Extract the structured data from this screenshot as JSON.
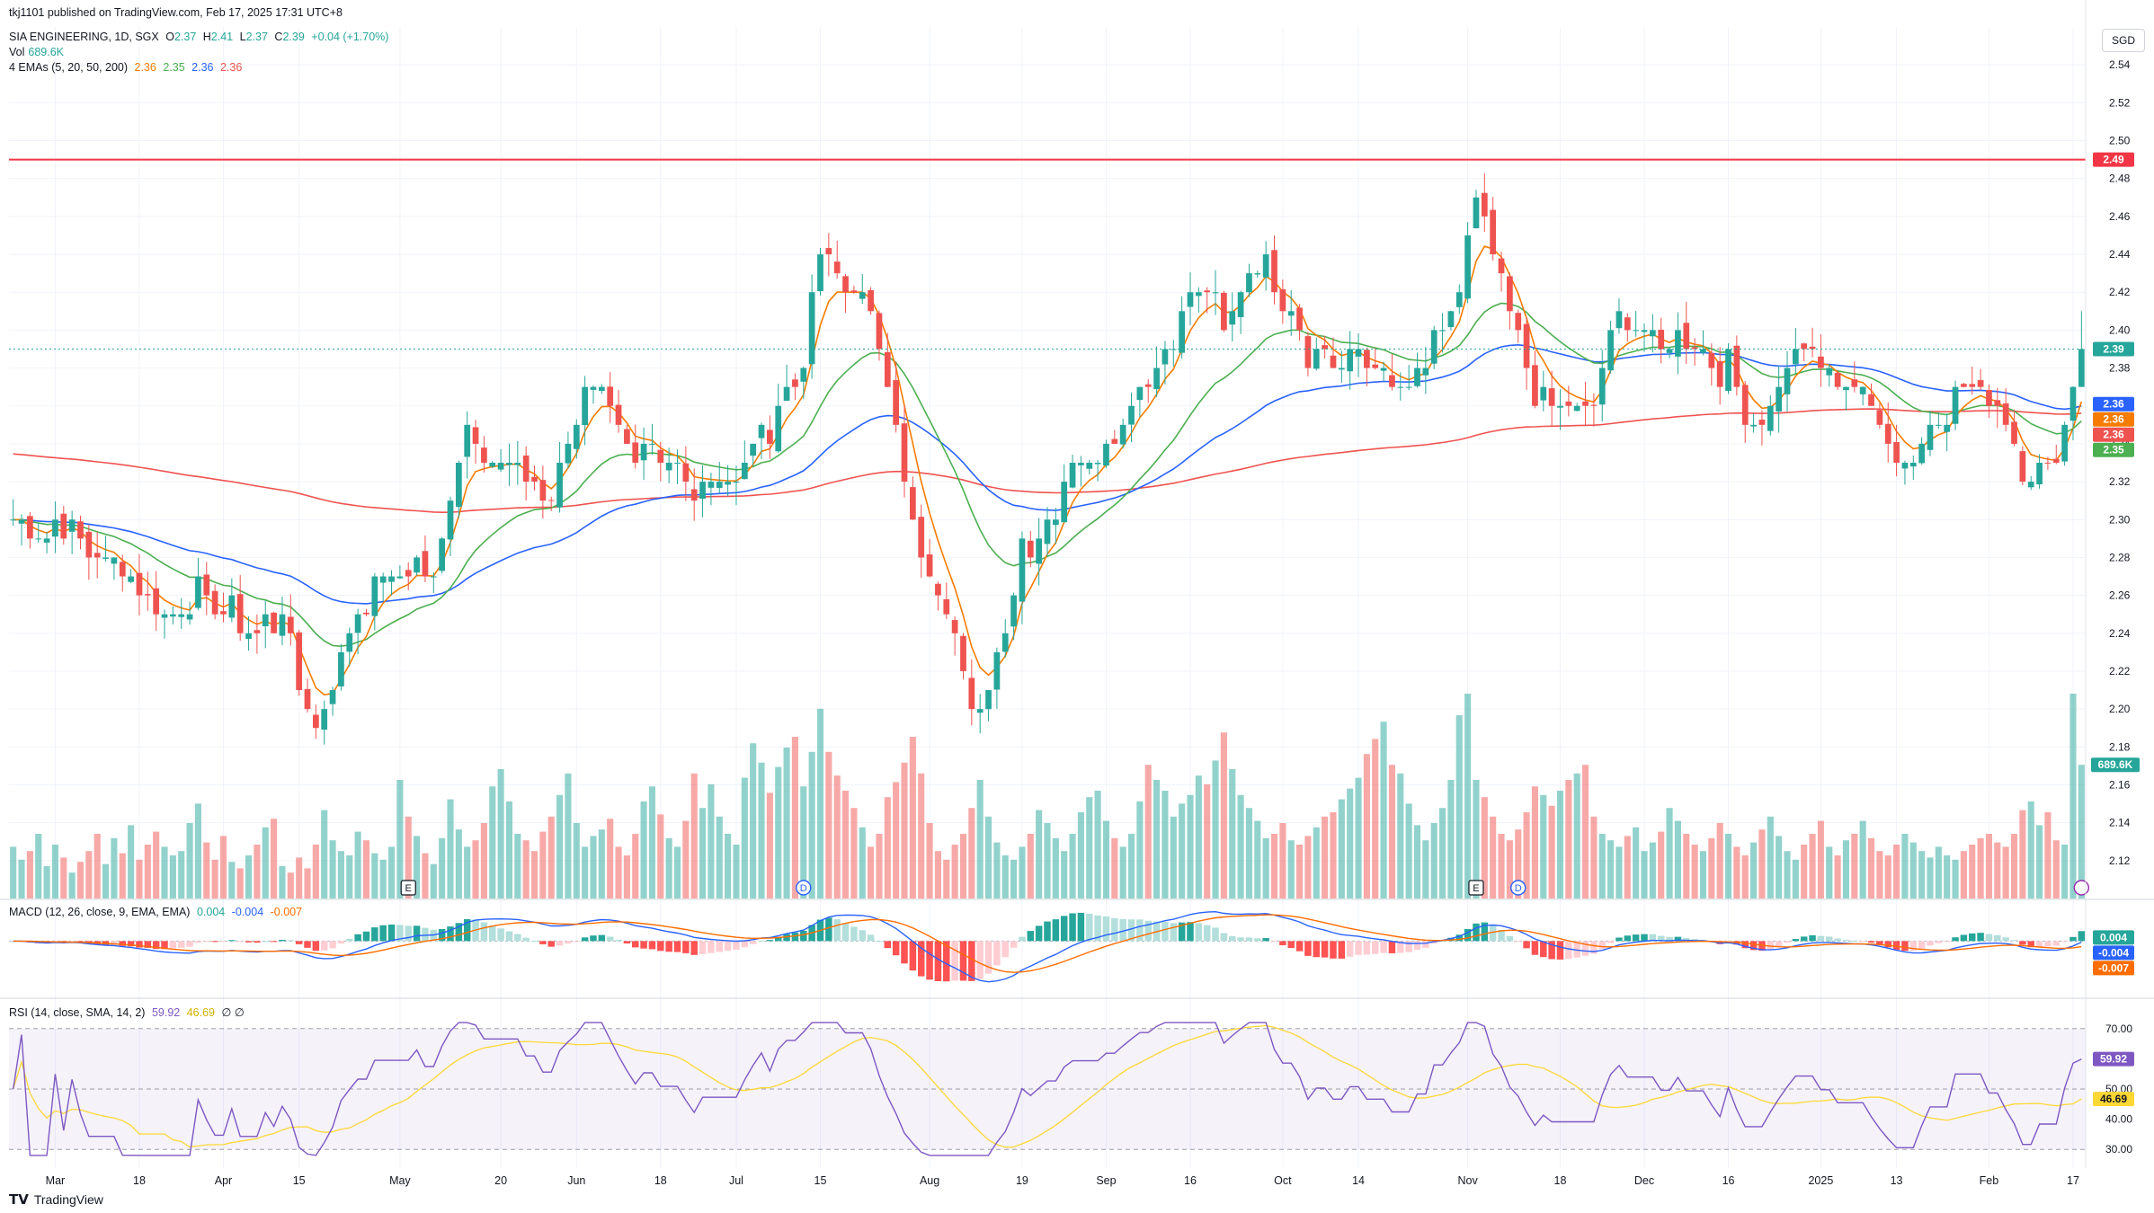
{
  "header": {
    "publisher": "tkj1101 published on TradingView.com, Feb 17, 2025 17:31 UTC+8"
  },
  "legend": {
    "symbol": "SIA ENGINEERING, 1D, SGX",
    "o_label": "O",
    "o": "2.37",
    "h_label": "H",
    "h": "2.41",
    "l_label": "L",
    "l": "2.37",
    "c_label": "C",
    "c": "2.39",
    "change": "+0.04 (+1.70%)",
    "vol_label": "Vol",
    "vol": "689.6K",
    "ema_label": "4 EMAs (5, 20, 50, 200)",
    "ema5": "2.36",
    "ema20": "2.35",
    "ema50": "2.36",
    "ema200": "2.36",
    "macd_label": "MACD (12, 26, close, 9, EMA, EMA)",
    "macd_hist": "0.004",
    "macd_line": "-0.004",
    "macd_signal": "-0.007",
    "rsi_label": "RSI (14, close, SMA, 14, 2)",
    "rsi": "59.92",
    "rsi_ma": "46.69",
    "rsi_extra": "∅ ∅"
  },
  "currency": "SGD",
  "footer_logo": "TradingView",
  "colors": {
    "up": "#26a69a",
    "down": "#ef5350",
    "ema5": "#f57c00",
    "ema20": "#4caf50",
    "ema50": "#2962ff",
    "ema200": "#ef5350",
    "macd": "#2962ff",
    "signal": "#ff6d00",
    "rsi": "#7e57c2",
    "rsi_ma": "#fdd835",
    "resistance": "#f23645"
  },
  "chart_data": [
    {
      "type": "candlestick",
      "title": "SIA ENGINEERING, 1D, SGX",
      "ylim": [
        2.1,
        2.56
      ],
      "y_ticks": [
        "2.54",
        "2.52",
        "2.50",
        "2.48",
        "2.46",
        "2.44",
        "2.42",
        "2.40",
        "2.38",
        "2.36",
        "2.34",
        "2.32",
        "2.30",
        "2.28",
        "2.26",
        "2.24",
        "2.22",
        "2.20",
        "2.18",
        "2.16",
        "2.14",
        "2.12"
      ],
      "x_labels": [
        {
          "label": "Mar",
          "i": 5
        },
        {
          "label": "18",
          "i": 15
        },
        {
          "label": "Apr",
          "i": 25
        },
        {
          "label": "15",
          "i": 34
        },
        {
          "label": "May",
          "i": 46
        },
        {
          "label": "20",
          "i": 58
        },
        {
          "label": "Jun",
          "i": 67
        },
        {
          "label": "18",
          "i": 77
        },
        {
          "label": "Jul",
          "i": 86
        },
        {
          "label": "15",
          "i": 96
        },
        {
          "label": "Aug",
          "i": 109
        },
        {
          "label": "19",
          "i": 120
        },
        {
          "label": "Sep",
          "i": 130
        },
        {
          "label": "16",
          "i": 140
        },
        {
          "label": "Oct",
          "i": 151
        },
        {
          "label": "14",
          "i": 160
        },
        {
          "label": "Nov",
          "i": 173
        },
        {
          "label": "18",
          "i": 184
        },
        {
          "label": "Dec",
          "i": 194
        },
        {
          "label": "16",
          "i": 204
        },
        {
          "label": "2025",
          "i": 215
        },
        {
          "label": "13",
          "i": 224
        },
        {
          "label": "Feb",
          "i": 235
        },
        {
          "label": "17",
          "i": 245
        }
      ],
      "close_anchors": [
        [
          0,
          2.3
        ],
        [
          3,
          2.29
        ],
        [
          6,
          2.3
        ],
        [
          10,
          2.28
        ],
        [
          14,
          2.27
        ],
        [
          18,
          2.25
        ],
        [
          22,
          2.26
        ],
        [
          26,
          2.25
        ],
        [
          29,
          2.24
        ],
        [
          32,
          2.25
        ],
        [
          34,
          2.21
        ],
        [
          36,
          2.19
        ],
        [
          38,
          2.21
        ],
        [
          40,
          2.24
        ],
        [
          42,
          2.26
        ],
        [
          44,
          2.27
        ],
        [
          46,
          2.27
        ],
        [
          48,
          2.28
        ],
        [
          50,
          2.27
        ],
        [
          52,
          2.31
        ],
        [
          54,
          2.35
        ],
        [
          56,
          2.34
        ],
        [
          58,
          2.33
        ],
        [
          60,
          2.32
        ],
        [
          62,
          2.32
        ],
        [
          64,
          2.31
        ],
        [
          66,
          2.34
        ],
        [
          68,
          2.37
        ],
        [
          70,
          2.37
        ],
        [
          72,
          2.35
        ],
        [
          74,
          2.33
        ],
        [
          76,
          2.33
        ],
        [
          78,
          2.33
        ],
        [
          80,
          2.32
        ],
        [
          82,
          2.32
        ],
        [
          84,
          2.32
        ],
        [
          86,
          2.32
        ],
        [
          88,
          2.34
        ],
        [
          90,
          2.35
        ],
        [
          92,
          2.37
        ],
        [
          94,
          2.38
        ],
        [
          96,
          2.44
        ],
        [
          98,
          2.43
        ],
        [
          100,
          2.42
        ],
        [
          102,
          2.41
        ],
        [
          104,
          2.38
        ],
        [
          106,
          2.32
        ],
        [
          108,
          2.28
        ],
        [
          110,
          2.26
        ],
        [
          112,
          2.24
        ],
        [
          114,
          2.21
        ],
        [
          116,
          2.21
        ],
        [
          118,
          2.24
        ],
        [
          120,
          2.29
        ],
        [
          122,
          2.29
        ],
        [
          124,
          2.31
        ],
        [
          126,
          2.33
        ],
        [
          128,
          2.33
        ],
        [
          130,
          2.34
        ],
        [
          132,
          2.35
        ],
        [
          134,
          2.37
        ],
        [
          136,
          2.38
        ],
        [
          138,
          2.4
        ],
        [
          140,
          2.42
        ],
        [
          142,
          2.42
        ],
        [
          144,
          2.4
        ],
        [
          146,
          2.42
        ],
        [
          148,
          2.44
        ],
        [
          150,
          2.43
        ],
        [
          152,
          2.41
        ],
        [
          154,
          2.39
        ],
        [
          156,
          2.39
        ],
        [
          158,
          2.38
        ],
        [
          160,
          2.39
        ],
        [
          162,
          2.38
        ],
        [
          164,
          2.37
        ],
        [
          166,
          2.37
        ],
        [
          168,
          2.38
        ],
        [
          170,
          2.4
        ],
        [
          172,
          2.42
        ],
        [
          174,
          2.47
        ],
        [
          176,
          2.44
        ],
        [
          178,
          2.41
        ],
        [
          180,
          2.38
        ],
        [
          182,
          2.36
        ],
        [
          184,
          2.36
        ],
        [
          186,
          2.36
        ],
        [
          188,
          2.36
        ],
        [
          190,
          2.4
        ],
        [
          192,
          2.41
        ],
        [
          194,
          2.4
        ],
        [
          196,
          2.39
        ],
        [
          198,
          2.4
        ],
        [
          200,
          2.39
        ],
        [
          202,
          2.38
        ],
        [
          204,
          2.38
        ],
        [
          206,
          2.36
        ],
        [
          208,
          2.35
        ],
        [
          210,
          2.37
        ],
        [
          212,
          2.39
        ],
        [
          214,
          2.39
        ],
        [
          216,
          2.38
        ],
        [
          218,
          2.37
        ],
        [
          220,
          2.37
        ],
        [
          222,
          2.35
        ],
        [
          224,
          2.33
        ],
        [
          226,
          2.33
        ],
        [
          228,
          2.35
        ],
        [
          230,
          2.36
        ],
        [
          232,
          2.37
        ],
        [
          234,
          2.37
        ],
        [
          236,
          2.36
        ],
        [
          238,
          2.34
        ],
        [
          240,
          2.32
        ],
        [
          242,
          2.33
        ],
        [
          244,
          2.35
        ],
        [
          246,
          2.39
        ]
      ],
      "resistance_line": 2.49,
      "price_labels": {
        "resistance": "2.49",
        "last": "2.39",
        "ema50": "2.36",
        "ema5": "2.36",
        "ema200": "2.36",
        "ema20": "2.35",
        "volume": "689.6K"
      },
      "event_markers": [
        {
          "i": 47,
          "label": "E"
        },
        {
          "i": 94,
          "label": "D"
        },
        {
          "i": 174,
          "label": "E"
        },
        {
          "i": 179,
          "label": "D"
        }
      ],
      "volume": [
        0.24,
        0.18,
        0.22,
        0.3,
        0.15,
        0.25,
        0.19,
        0.12,
        0.17,
        0.22,
        0.3,
        0.16,
        0.28,
        0.21,
        0.34,
        0.18,
        0.25,
        0.31,
        0.24,
        0.2,
        0.22,
        0.35,
        0.44,
        0.26,
        0.18,
        0.29,
        0.17,
        0.14,
        0.2,
        0.25,
        0.33,
        0.37,
        0.15,
        0.12,
        0.19,
        0.14,
        0.25,
        0.41,
        0.27,
        0.22,
        0.2,
        0.31,
        0.27,
        0.21,
        0.18,
        0.24,
        0.55,
        0.38,
        0.29,
        0.21,
        0.16,
        0.28,
        0.46,
        0.32,
        0.24,
        0.27,
        0.35,
        0.52,
        0.6,
        0.45,
        0.3,
        0.27,
        0.22,
        0.31,
        0.38,
        0.48,
        0.58,
        0.35,
        0.24,
        0.29,
        0.32,
        0.37,
        0.24,
        0.2,
        0.3,
        0.45,
        0.52,
        0.39,
        0.28,
        0.24,
        0.36,
        0.58,
        0.42,
        0.53,
        0.38,
        0.3,
        0.25,
        0.56,
        0.72,
        0.63,
        0.49,
        0.61,
        0.7,
        0.75,
        0.52,
        0.68,
        0.88,
        0.68,
        0.57,
        0.5,
        0.42,
        0.33,
        0.24,
        0.3,
        0.47,
        0.54,
        0.63,
        0.75,
        0.58,
        0.35,
        0.22,
        0.18,
        0.25,
        0.3,
        0.42,
        0.55,
        0.38,
        0.26,
        0.2,
        0.18,
        0.24,
        0.3,
        0.41,
        0.35,
        0.28,
        0.22,
        0.3,
        0.4,
        0.47,
        0.5,
        0.36,
        0.28,
        0.24,
        0.3,
        0.45,
        0.62,
        0.55,
        0.5,
        0.38,
        0.44,
        0.48,
        0.57,
        0.53,
        0.64,
        0.77,
        0.6,
        0.48,
        0.42,
        0.36,
        0.28,
        0.3,
        0.35,
        0.27,
        0.25,
        0.29,
        0.33,
        0.38,
        0.4,
        0.46,
        0.51,
        0.56,
        0.67,
        0.74,
        0.82,
        0.62,
        0.58,
        0.44,
        0.34,
        0.27,
        0.35,
        0.42,
        0.55,
        0.85,
        0.95,
        0.55,
        0.47,
        0.38,
        0.3,
        0.27,
        0.32,
        0.4,
        0.52,
        0.48,
        0.43,
        0.5,
        0.55,
        0.58,
        0.62,
        0.38,
        0.3,
        0.27,
        0.24,
        0.29,
        0.33,
        0.22,
        0.26,
        0.31,
        0.42,
        0.36,
        0.3,
        0.25,
        0.22,
        0.28,
        0.35,
        0.3,
        0.24,
        0.2,
        0.26,
        0.32,
        0.38,
        0.29,
        0.22,
        0.18,
        0.25,
        0.3,
        0.36,
        0.24,
        0.2,
        0.27,
        0.3,
        0.36,
        0.28,
        0.22,
        0.2,
        0.25,
        0.3,
        0.26,
        0.22,
        0.19,
        0.24,
        0.2,
        0.18,
        0.22,
        0.25,
        0.28,
        0.3,
        0.26,
        0.24,
        0.3,
        0.41,
        0.45,
        0.34,
        0.4,
        0.27,
        0.25,
        0.95,
        0.62
      ]
    },
    {
      "type": "line",
      "title": "MACD (12, 26, close, 9, EMA, EMA)",
      "series": [
        {
          "name": "MACD",
          "last": -0.004
        },
        {
          "name": "Signal",
          "last": -0.007
        },
        {
          "name": "Histogram",
          "last": 0.004
        }
      ]
    },
    {
      "type": "line",
      "title": "RSI (14, close, SMA, 14, 2)",
      "ylim": [
        25,
        75
      ],
      "y_ticks": [
        "70.00",
        "50.00",
        "40.00",
        "30.00"
      ],
      "series": [
        {
          "name": "RSI",
          "last": 59.92
        },
        {
          "name": "RSI-based MA",
          "last": 46.69
        }
      ]
    }
  ]
}
